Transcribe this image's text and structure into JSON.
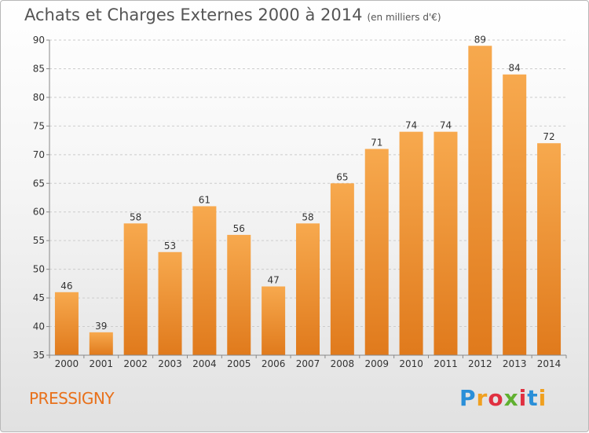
{
  "header": {
    "title": "Achats et Charges Externes 2000 à 2014",
    "subtitle": "(en milliers d'€)"
  },
  "footer": {
    "commune": "PRESSIGNY",
    "logo_letters": [
      "P",
      "r",
      "o",
      "x",
      "i",
      "t",
      "i"
    ],
    "logo_colors": [
      "#2a8fd8",
      "#f0a020",
      "#e03040",
      "#60b030",
      "#e03040",
      "#2a8fd8",
      "#f0a020"
    ]
  },
  "colors": {
    "bar_top": "#f7a94e",
    "bar_bottom": "#e07a1c",
    "grid": "#cccccc",
    "axis": "#888888"
  },
  "chart_data": {
    "type": "bar",
    "title": "Achats et Charges Externes 2000 à 2014",
    "subtitle": "(en milliers d'€)",
    "categories": [
      "2000",
      "2001",
      "2002",
      "2003",
      "2004",
      "2005",
      "2006",
      "2007",
      "2008",
      "2009",
      "2010",
      "2011",
      "2012",
      "2013",
      "2014"
    ],
    "values": [
      46,
      39,
      58,
      53,
      61,
      56,
      47,
      58,
      65,
      71,
      74,
      74,
      89,
      84,
      72
    ],
    "ylim": [
      35,
      90
    ],
    "yticks": [
      35,
      40,
      45,
      50,
      55,
      60,
      65,
      70,
      75,
      80,
      85,
      90
    ],
    "xlabel": "",
    "ylabel": "",
    "grid": true
  }
}
